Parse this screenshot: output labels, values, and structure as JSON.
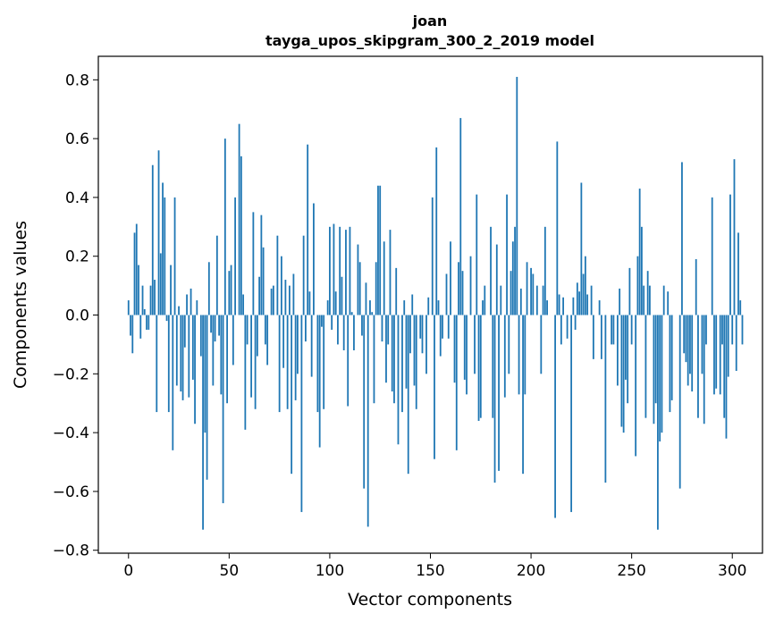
{
  "chart_data": {
    "type": "bar",
    "title": "joan",
    "subtitle": "tayga_upos_skipgram_300_2_2019 model",
    "xlabel": "Vector components",
    "ylabel": "Components values",
    "xlim": [
      -15,
      315
    ],
    "ylim": [
      -0.81,
      0.88
    ],
    "xticks": [
      0,
      50,
      100,
      150,
      200,
      250,
      300
    ],
    "yticks": [
      -0.8,
      -0.6,
      -0.4,
      -0.2,
      0.0,
      0.2,
      0.4,
      0.6,
      0.8
    ],
    "xtick_labels": [
      "0",
      "50",
      "100",
      "150",
      "200",
      "250",
      "300"
    ],
    "ytick_labels": [
      "−0.8",
      "−0.6",
      "−0.4",
      "−0.2",
      "0.0",
      "0.2",
      "0.4",
      "0.6",
      "0.8"
    ],
    "grid": false,
    "bar_color": "#1f77b4",
    "values": [
      0.05,
      -0.07,
      -0.13,
      0.28,
      0.31,
      0.17,
      -0.08,
      0.1,
      0.02,
      -0.05,
      -0.05,
      0.1,
      0.51,
      0.12,
      -0.33,
      0.56,
      0.21,
      0.45,
      0.4,
      -0.02,
      -0.33,
      0.17,
      -0.46,
      0.4,
      -0.24,
      0.03,
      -0.26,
      -0.29,
      -0.11,
      0.07,
      -0.28,
      0.09,
      -0.22,
      -0.37,
      0.05,
      0.0,
      -0.14,
      -0.73,
      -0.4,
      -0.56,
      0.18,
      -0.06,
      -0.24,
      -0.09,
      0.27,
      -0.07,
      -0.27,
      -0.64,
      0.6,
      -0.3,
      0.15,
      0.17,
      -0.17,
      0.4,
      0.0,
      0.65,
      0.54,
      0.07,
      -0.39,
      -0.1,
      0.0,
      -0.28,
      0.35,
      -0.32,
      -0.14,
      0.13,
      0.34,
      0.23,
      -0.1,
      -0.17,
      0.0,
      0.09,
      0.1,
      0.0,
      0.27,
      -0.33,
      0.2,
      -0.18,
      0.12,
      -0.32,
      0.1,
      -0.54,
      0.14,
      -0.29,
      -0.2,
      0.0,
      -0.67,
      0.27,
      -0.09,
      0.58,
      0.08,
      -0.21,
      0.38,
      0.0,
      -0.33,
      -0.45,
      -0.04,
      -0.32,
      0.0,
      0.05,
      0.3,
      -0.05,
      0.31,
      0.08,
      -0.1,
      0.3,
      0.13,
      -0.12,
      0.29,
      -0.31,
      0.3,
      0.01,
      -0.12,
      0.0,
      0.24,
      0.18,
      -0.07,
      -0.59,
      0.11,
      -0.72,
      0.05,
      0.01,
      -0.3,
      0.18,
      0.44,
      0.44,
      -0.09,
      0.25,
      -0.23,
      -0.1,
      0.29,
      -0.26,
      -0.3,
      0.16,
      -0.44,
      0.0,
      -0.33,
      0.05,
      -0.25,
      -0.54,
      -0.13,
      0.07,
      -0.24,
      -0.32,
      0.0,
      -0.08,
      -0.13,
      0.0,
      -0.2,
      0.06,
      0.0,
      0.4,
      -0.49,
      0.57,
      0.05,
      -0.14,
      -0.08,
      0.0,
      0.14,
      -0.08,
      0.25,
      0.0,
      -0.23,
      -0.46,
      0.18,
      0.67,
      0.15,
      -0.22,
      -0.27,
      0.0,
      0.2,
      0.0,
      -0.2,
      0.41,
      -0.36,
      -0.35,
      0.05,
      0.1,
      0.0,
      0.0,
      0.3,
      -0.35,
      -0.57,
      0.24,
      -0.53,
      0.1,
      0.0,
      -0.28,
      0.41,
      -0.2,
      0.15,
      0.25,
      0.3,
      0.81,
      -0.27,
      0.09,
      -0.54,
      -0.27,
      0.18,
      0.0,
      0.16,
      0.14,
      0.0,
      0.1,
      0.0,
      -0.2,
      0.1,
      0.3,
      0.05,
      0.0,
      0.0,
      0.0,
      -0.69,
      0.59,
      0.07,
      -0.1,
      0.06,
      0.0,
      -0.08,
      0.0,
      -0.67,
      0.06,
      -0.05,
      0.11,
      0.08,
      0.45,
      0.14,
      0.2,
      0.07,
      0.0,
      0.1,
      -0.15,
      0.0,
      0.0,
      0.05,
      -0.15,
      0.0,
      -0.57,
      0.0,
      0.0,
      -0.1,
      -0.1,
      0.0,
      -0.24,
      0.09,
      -0.38,
      -0.4,
      -0.22,
      -0.3,
      0.16,
      -0.1,
      0.0,
      -0.48,
      0.2,
      0.43,
      0.3,
      0.1,
      -0.35,
      0.15,
      0.1,
      0.0,
      -0.37,
      -0.3,
      -0.73,
      -0.43,
      -0.4,
      0.1,
      0.0,
      0.08,
      -0.33,
      -0.29,
      0.0,
      0.0,
      0.0,
      -0.59,
      0.52,
      -0.13,
      -0.16,
      -0.24,
      -0.2,
      -0.26,
      0.0,
      0.19,
      -0.35,
      0.0,
      -0.2,
      -0.37,
      -0.1,
      0.0,
      0.0,
      0.4,
      -0.27,
      -0.25,
      0.0,
      -0.27,
      -0.1,
      -0.35,
      -0.42,
      -0.21,
      0.41,
      -0.1,
      0.53,
      -0.19,
      0.28,
      0.05,
      -0.1
    ]
  }
}
